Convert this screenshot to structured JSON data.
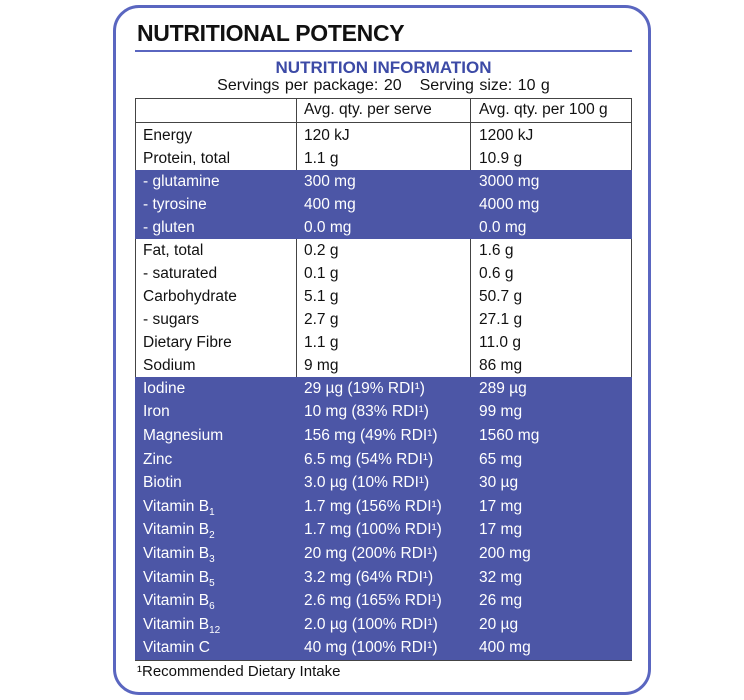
{
  "header": {
    "title": "NUTRITIONAL POTENCY"
  },
  "panel": {
    "title": "NUTRITION INFORMATION",
    "servings": "Servings per package: 20",
    "serving_size": "Serving size: 10 g",
    "columns": [
      "Avg. qty. per serve",
      "Avg. qty. per 100 g"
    ],
    "sections": [
      {
        "highlight": false,
        "rows": [
          {
            "name": "Energy",
            "serve": "120 kJ",
            "per100": "1200 kJ"
          },
          {
            "name": "Protein, total",
            "serve": "1.1 g",
            "per100": "10.9 g"
          }
        ]
      },
      {
        "highlight": true,
        "rows": [
          {
            "name": "- glutamine",
            "serve": "300 mg",
            "per100": "3000 mg"
          },
          {
            "name": "- tyrosine",
            "serve": "400 mg",
            "per100": "4000 mg"
          },
          {
            "name": "- gluten",
            "serve": "0.0 mg",
            "per100": "0.0 mg"
          }
        ]
      },
      {
        "highlight": false,
        "rows": [
          {
            "name": "Fat, total",
            "serve": "0.2 g",
            "per100": "1.6 g"
          },
          {
            "name": "- saturated",
            "serve": "0.1 g",
            "per100": "0.6 g"
          },
          {
            "name": "Carbohydrate",
            "serve": "5.1 g",
            "per100": "50.7 g"
          },
          {
            "name": "- sugars",
            "serve": "2.7 g",
            "per100": "27.1 g"
          },
          {
            "name": "Dietary Fibre",
            "serve": "1.1 g",
            "per100": "11.0 g"
          },
          {
            "name": "Sodium",
            "serve": "9 mg",
            "per100": "86 mg"
          }
        ]
      },
      {
        "highlight": true,
        "rows": [
          {
            "name": "Iodine",
            "serve": "29 µg (19% RDI¹)",
            "per100": "289 µg"
          },
          {
            "name": "Iron",
            "serve": "10 mg (83% RDI¹)",
            "per100": "99 mg"
          },
          {
            "name": "Magnesium",
            "serve": "156 mg (49% RDI¹)",
            "per100": "1560 mg"
          },
          {
            "name": "Zinc",
            "serve": "6.5 mg (54% RDI¹)",
            "per100": "65 mg"
          },
          {
            "name": "Biotin",
            "serve": "3.0 µg (10% RDI¹)",
            "per100": "30 µg"
          },
          {
            "name": "Vitamin B",
            "sub": "1",
            "serve": "1.7 mg (156% RDI¹)",
            "per100": "17 mg"
          },
          {
            "name": "Vitamin B",
            "sub": "2",
            "serve": "1.7 mg (100% RDI¹)",
            "per100": "17 mg"
          },
          {
            "name": "Vitamin B",
            "sub": "3",
            "serve": "20 mg (200% RDI¹)",
            "per100": "200 mg"
          },
          {
            "name": "Vitamin B",
            "sub": "5",
            "serve": "3.2 mg (64% RDI¹)",
            "per100": "32 mg"
          },
          {
            "name": "Vitamin B",
            "sub": "6",
            "serve": "2.6 mg (165% RDI¹)",
            "per100": "26 mg"
          },
          {
            "name": "Vitamin B",
            "sub": "12",
            "serve": "2.0 µg (100% RDI¹)",
            "per100": "20 µg"
          },
          {
            "name": "Vitamin C",
            "serve": "40 mg (100% RDI¹)",
            "per100": "400 mg"
          }
        ]
      }
    ],
    "footnote": "¹Recommended Dietary Intake"
  }
}
